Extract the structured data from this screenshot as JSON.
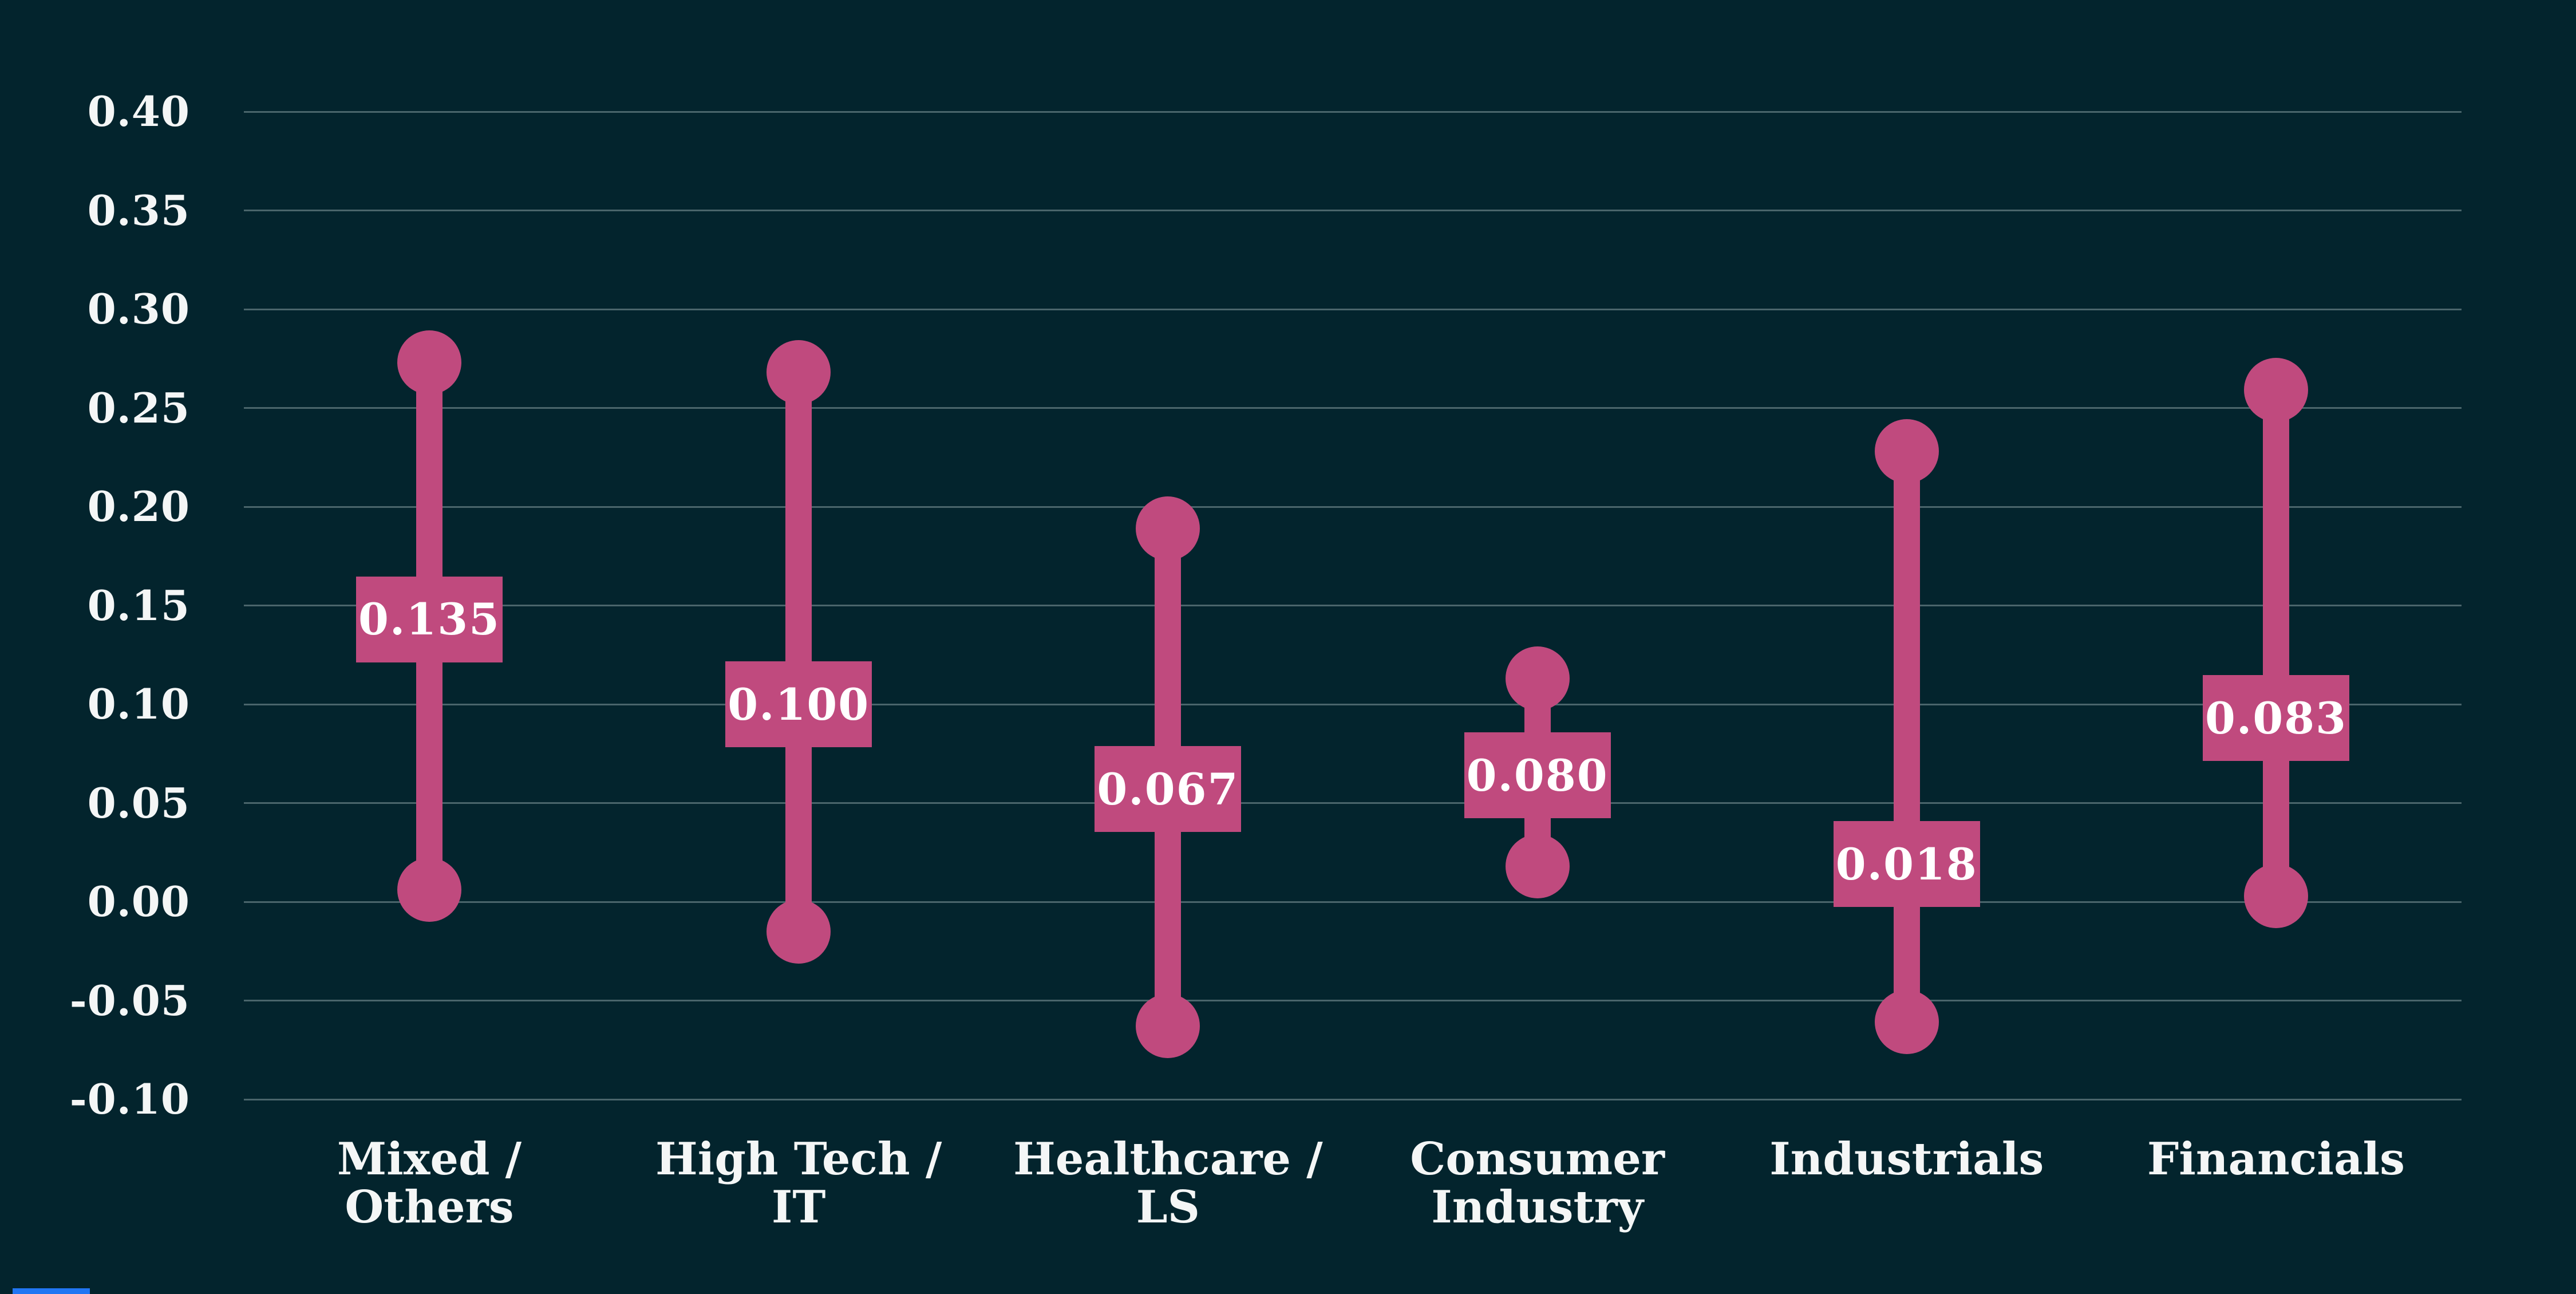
{
  "chart_data": {
    "type": "dumbbell-range",
    "title": "",
    "xlabel": "",
    "ylabel": "",
    "grid": true,
    "legend": false,
    "y_axis": {
      "min": -0.1,
      "max": 0.4,
      "step": 0.05,
      "tick_labels": [
        "0.40",
        "0.35",
        "0.30",
        "0.25",
        "0.20",
        "0.15",
        "0.10",
        "0.05",
        "0.00",
        "-0.05",
        "-0.10"
      ],
      "tick_values": [
        0.4,
        0.35,
        0.3,
        0.25,
        0.2,
        0.15,
        0.1,
        0.05,
        0.0,
        -0.05,
        -0.1
      ]
    },
    "categories": [
      [
        "Mixed /",
        "Others"
      ],
      [
        "High Tech /",
        "IT"
      ],
      [
        "Healthcare /",
        "LS"
      ],
      [
        "Consumer",
        "Industry"
      ],
      [
        "Industrials"
      ],
      [
        "Financials"
      ]
    ],
    "series": [
      {
        "category": "Mixed / Others",
        "high": 0.273,
        "low": 0.006,
        "median_label": "0.135",
        "median_box_position": 0.143
      },
      {
        "category": "High Tech / IT",
        "high": 0.268,
        "low": -0.015,
        "median_label": "0.100",
        "median_box_position": 0.1
      },
      {
        "category": "Healthcare / LS",
        "high": 0.189,
        "low": -0.063,
        "median_label": "0.067",
        "median_box_position": 0.057
      },
      {
        "category": "Consumer Industry",
        "high": 0.113,
        "low": 0.018,
        "median_label": "0.080",
        "median_box_position": 0.064
      },
      {
        "category": "Industrials",
        "high": 0.228,
        "low": -0.061,
        "median_label": "0.018",
        "median_box_position": 0.019
      },
      {
        "category": "Financials",
        "high": 0.259,
        "low": 0.003,
        "median_label": "0.083",
        "median_box_position": 0.093
      }
    ]
  },
  "colors": {
    "background": "#03242d",
    "marker_pink": "#c04a7e",
    "gridline": "#4a656b",
    "text": "#f4f6f6",
    "box_text": "#ffffff",
    "bottom_left_mark_blue": "#2176f3"
  }
}
